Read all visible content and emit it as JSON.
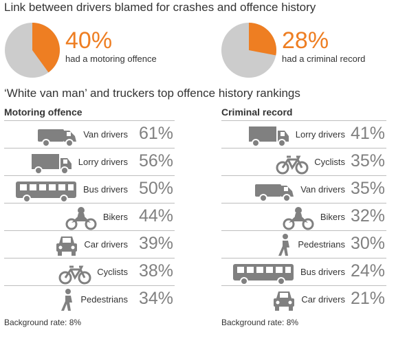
{
  "title": "Link between drivers blamed for crashes and offence history",
  "subtitle": "‘White van man’ and truckers top offence history rankings",
  "colors": {
    "accent": "#ee7e22",
    "pie_rest": "#cccccc",
    "icon": "#808080"
  },
  "headline_stats": [
    {
      "value": "40%",
      "fraction": 0.4,
      "label": "had a motoring offence"
    },
    {
      "value": "28%",
      "fraction": 0.28,
      "label": "had a criminal record"
    }
  ],
  "chart_data": [
    {
      "type": "table",
      "title": "Motoring offence",
      "categories": [
        "Van drivers",
        "Lorry drivers",
        "Bus drivers",
        "Bikers",
        "Car drivers",
        "Cyclists",
        "Pedestrians"
      ],
      "values": [
        61,
        56,
        50,
        44,
        39,
        38,
        34
      ],
      "value_labels": [
        "61%",
        "56%",
        "50%",
        "44%",
        "39%",
        "38%",
        "34%"
      ],
      "icons": [
        "van-icon",
        "lorry-icon",
        "bus-icon",
        "motorbike-icon",
        "car-icon",
        "bicycle-icon",
        "pedestrian-icon"
      ],
      "footnote": "Background rate: 8%"
    },
    {
      "type": "table",
      "title": "Criminal record",
      "categories": [
        "Lorry drivers",
        "Cyclists",
        "Van drivers",
        "Bikers",
        "Pedestrians",
        "Bus drivers",
        "Car drivers"
      ],
      "values": [
        41,
        35,
        35,
        32,
        30,
        24,
        21
      ],
      "value_labels": [
        "41%",
        "35%",
        "35%",
        "32%",
        "30%",
        "24%",
        "21%"
      ],
      "icons": [
        "lorry-icon",
        "bicycle-icon",
        "van-icon",
        "motorbike-icon",
        "pedestrian-icon",
        "bus-icon",
        "car-icon"
      ],
      "footnote": "Background rate: 8%"
    }
  ]
}
